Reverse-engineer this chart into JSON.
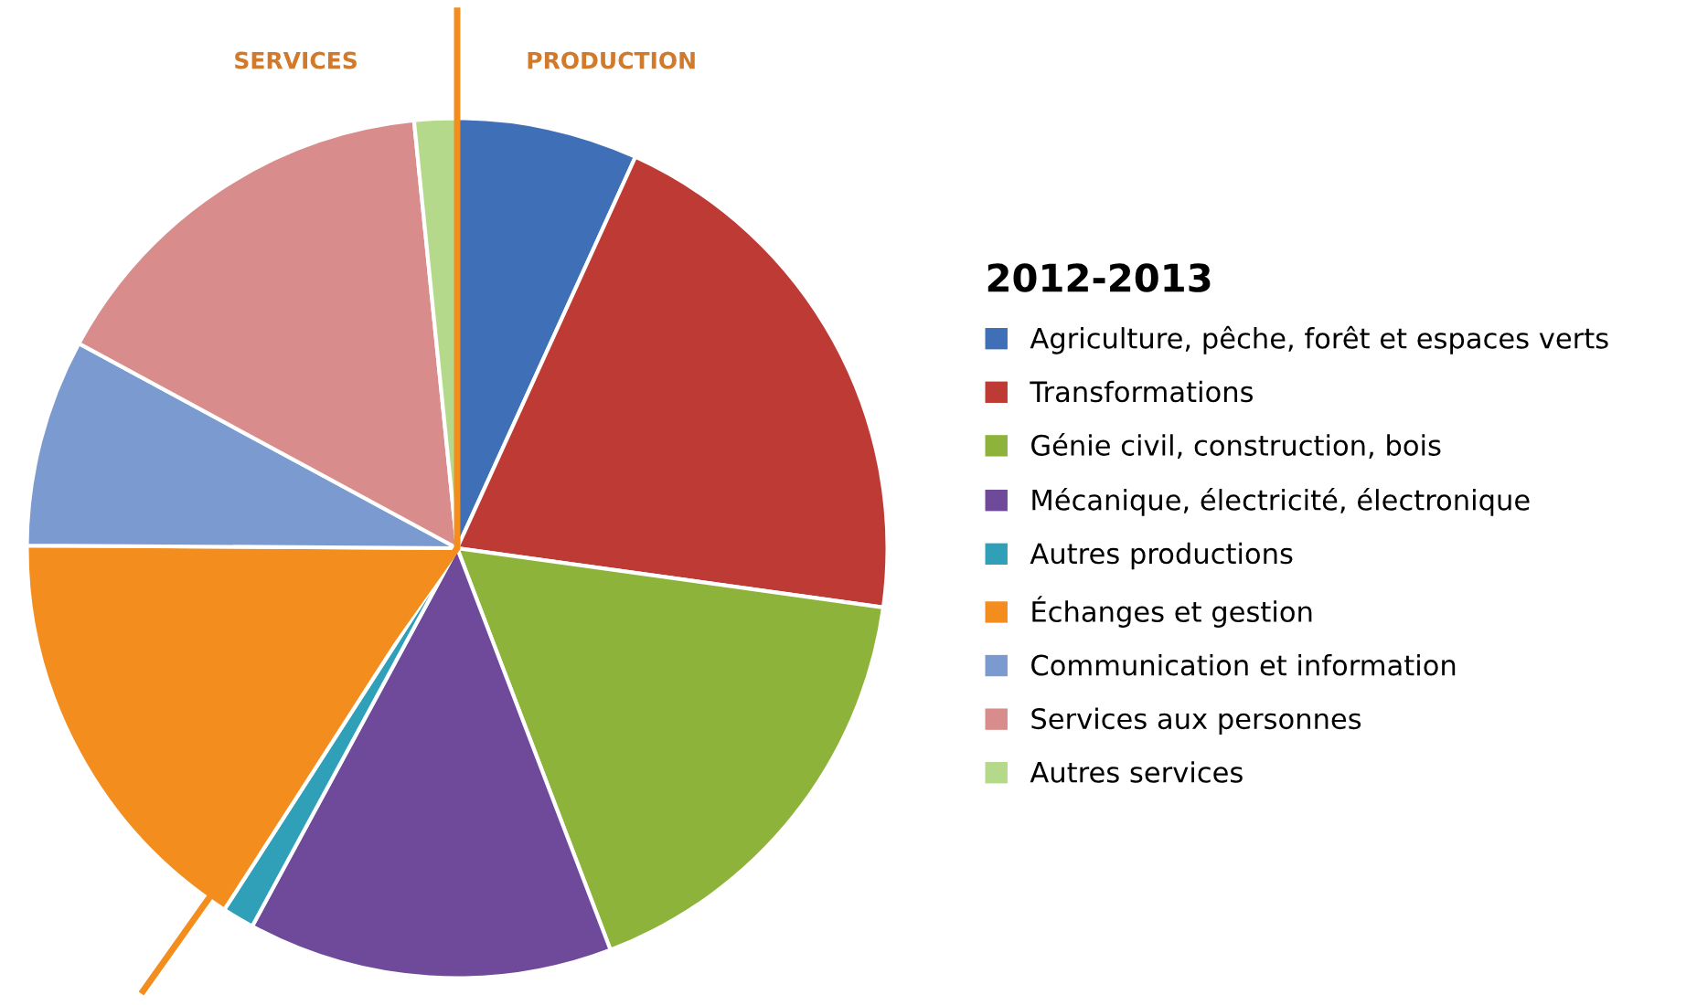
{
  "chart_data": {
    "type": "pie",
    "legend_title": "2012-2013",
    "categories": [
      "Agriculture, pêche, forêt et espaces verts",
      "Transformations",
      "Génie civil, construction, bois",
      "Mécanique, électricité, électronique",
      "Autres productions",
      "Échanges et gestion",
      "Communication et information",
      "Services aux personnes",
      "Autres services"
    ],
    "values": [
      6.8,
      20.4,
      17,
      13.7,
      1.2,
      16,
      7.8,
      15.5,
      1.6
    ],
    "colors": [
      "#3f6fb6",
      "#be3a34",
      "#8db33a",
      "#6f4a9a",
      "#2fa0b8",
      "#f28d1e",
      "#7b9bd0",
      "#d98c8c",
      "#b5d98a"
    ],
    "annotations": [
      "SERVICES",
      "PRODUCTION"
    ],
    "legend": "right"
  }
}
